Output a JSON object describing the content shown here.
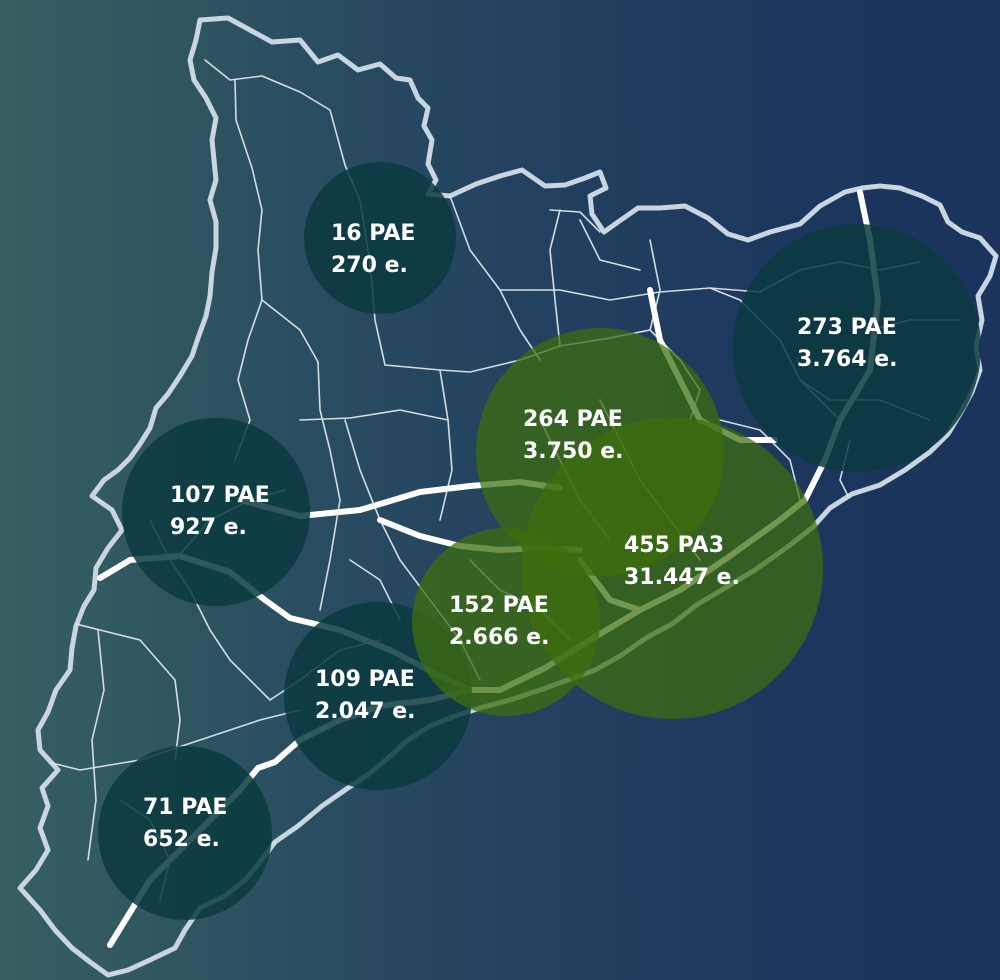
{
  "colors": {
    "bubble_dark": "#0b3a3f",
    "bubble_green": "#3d6e0d",
    "outline": "#c9d6e1",
    "roads": "#e6edf3",
    "highway": "#ffffff",
    "label": "#ffffff"
  },
  "regions": [
    {
      "id": "alt-pirineu",
      "count": "16 PAE",
      "employees": "270 e.",
      "style": "dark"
    },
    {
      "id": "girona",
      "count": "273 PAE",
      "employees": "3.764 e.",
      "style": "dark"
    },
    {
      "id": "comarques-centrals",
      "count": "264 PAE",
      "employees": "3.750 e.",
      "style": "green"
    },
    {
      "id": "lleida",
      "count": "107 PAE",
      "employees": "927 e.",
      "style": "dark"
    },
    {
      "id": "barcelona",
      "count": "455 PA3",
      "employees": "31.447 e.",
      "style": "green"
    },
    {
      "id": "penedes",
      "count": "152 PAE",
      "employees": "2.666 e.",
      "style": "green"
    },
    {
      "id": "camp-tarragona",
      "count": "109 PAE",
      "employees": "2.047 e.",
      "style": "dark"
    },
    {
      "id": "terres-ebre",
      "count": "71 PAE",
      "employees": "652 e.",
      "style": "dark"
    }
  ]
}
